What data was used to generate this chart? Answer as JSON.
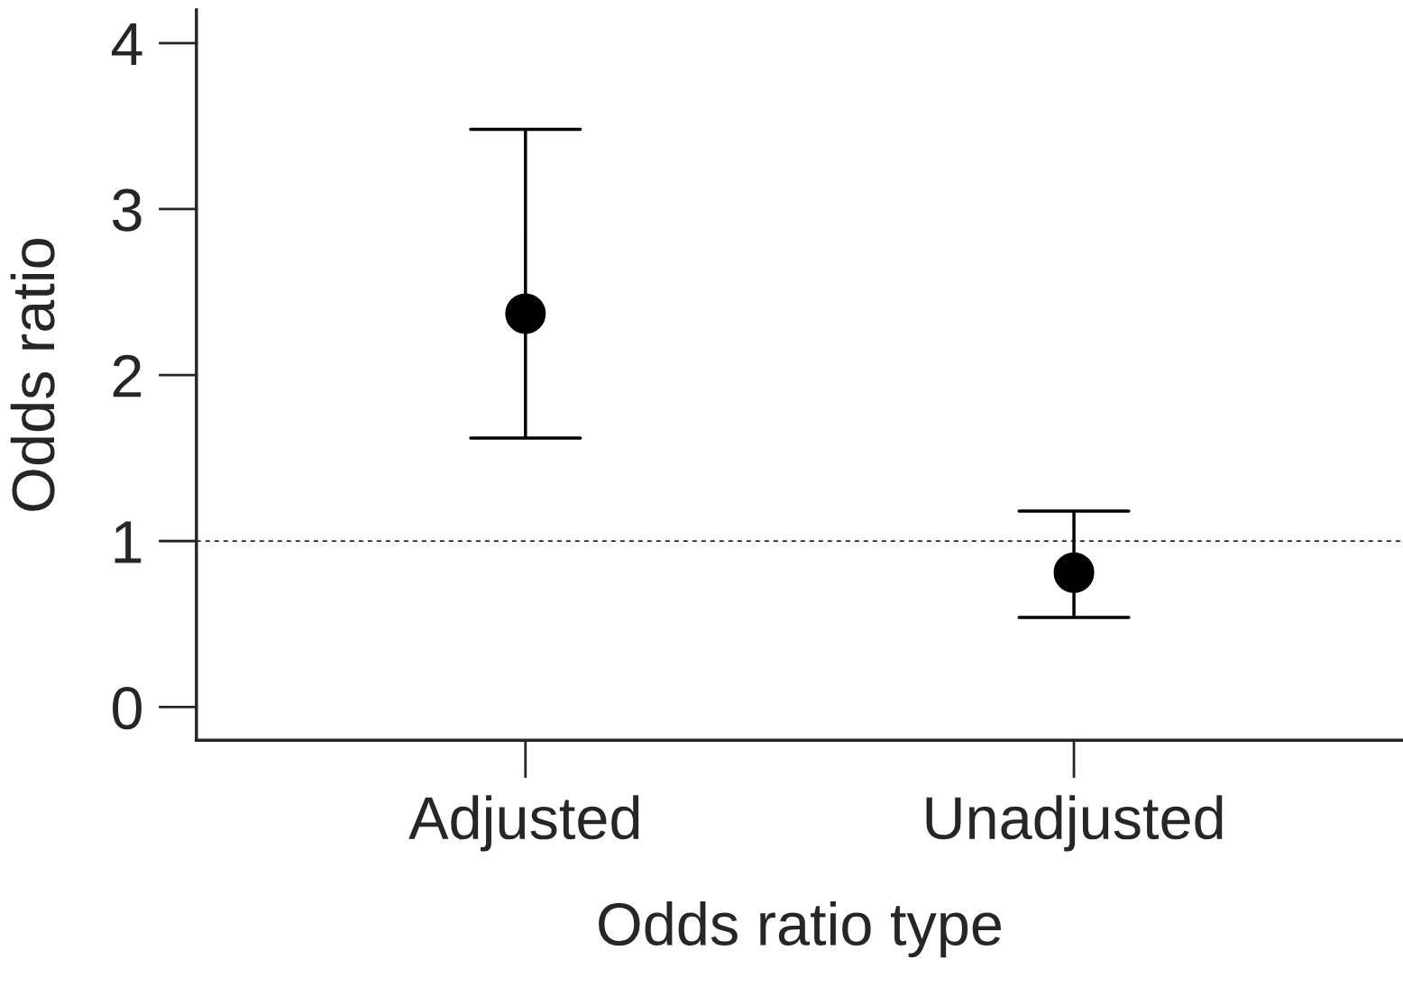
{
  "chart_data": {
    "type": "scatter",
    "xlabel": "Odds ratio type",
    "ylabel": "Odds ratio",
    "categories": [
      "Adjusted",
      "Unadjusted"
    ],
    "values": [
      2.37,
      0.81
    ],
    "color": "#000000",
    "errors": [
      [
        1.62,
        3.48
      ],
      [
        0.54,
        1.18
      ]
    ],
    "ylim": [
      -0.2,
      4.2
    ],
    "yticks": [
      0,
      1,
      2,
      3,
      4
    ],
    "ref_lines": [
      {
        "axis": "y",
        "value": 1,
        "color": "#000000",
        "line_style": "dashed"
      }
    ],
    "marker": "circle",
    "grid": false,
    "legend": false
  }
}
